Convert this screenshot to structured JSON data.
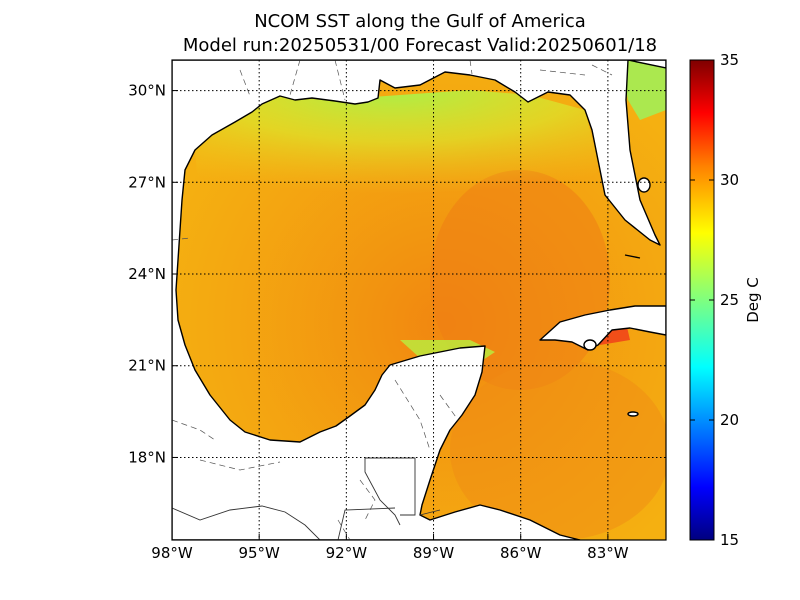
{
  "title": {
    "line1": "NCOM SST along the Gulf of America",
    "line2": "Model run:20250531/00 Forecast Valid:20250601/18"
  },
  "map": {
    "lon_range": [
      -98,
      -81
    ],
    "lat_range": [
      15.3,
      31
    ],
    "lon_ticks": [
      {
        "value": -98,
        "label": "98°W"
      },
      {
        "value": -95,
        "label": "95°W"
      },
      {
        "value": -92,
        "label": "92°W"
      },
      {
        "value": -89,
        "label": "89°W"
      },
      {
        "value": -86,
        "label": "86°W"
      },
      {
        "value": -83,
        "label": "83°W"
      }
    ],
    "lat_ticks": [
      {
        "value": 30,
        "label": "30°N"
      },
      {
        "value": 27,
        "label": "27°N"
      },
      {
        "value": 24,
        "label": "24°N"
      },
      {
        "value": 21,
        "label": "21°N"
      },
      {
        "value": 18,
        "label": "18°N"
      }
    ],
    "grid": true,
    "grid_style": "dotted",
    "land_color": "#ffffff",
    "coast_color": "#000000"
  },
  "colorbar": {
    "label": "Deg C",
    "min": 15,
    "max": 35,
    "ticks": [
      {
        "value": 35,
        "label": "35"
      },
      {
        "value": 30,
        "label": "30"
      },
      {
        "value": 25,
        "label": "25"
      },
      {
        "value": 20,
        "label": "20"
      },
      {
        "value": 15,
        "label": "15"
      }
    ],
    "colormap": "jet",
    "colors": [
      "#00007f",
      "#0000ff",
      "#007fff",
      "#00ffff",
      "#7fff7f",
      "#ffff00",
      "#ff7f00",
      "#ff0000",
      "#7f0000"
    ]
  }
}
